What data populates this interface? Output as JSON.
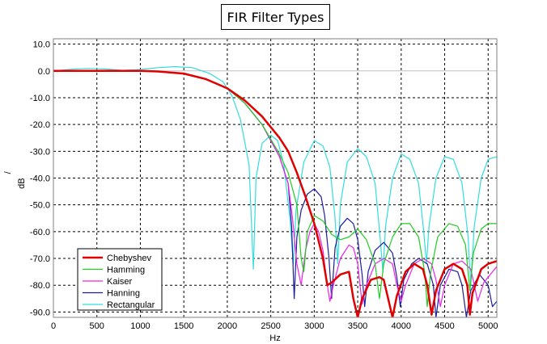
{
  "chart_data": {
    "type": "line",
    "title": "FIR Filter Types",
    "xlabel": "Hz",
    "ylabel": "dB",
    "ylabel_top": "/",
    "xlim": [
      0,
      5100
    ],
    "ylim": [
      -92,
      12
    ],
    "x_ticks": [
      0,
      500,
      1000,
      1500,
      2000,
      2500,
      3000,
      3500,
      4000,
      4500,
      5000
    ],
    "y_ticks": [
      10,
      0,
      -10,
      -20,
      -30,
      -40,
      -50,
      -60,
      -70,
      -80,
      -90
    ],
    "x_tick_labels": [
      "0",
      "500",
      "1000",
      "1500",
      "2000",
      "2500",
      "3000",
      "3500",
      "4000",
      "4500",
      "5000"
    ],
    "y_tick_labels": [
      "10.0",
      "0.0",
      "-10.0",
      "-20.0",
      "-30.0",
      "-40.0",
      "-50.0",
      "-60.0",
      "-70.0",
      "-80.0",
      "-90.0"
    ],
    "grid": true,
    "legend_position": "bottom-left",
    "series": [
      {
        "name": "Chebyshev",
        "color": "#e00000",
        "points": [
          [
            0,
            0
          ],
          [
            500,
            0
          ],
          [
            1000,
            0
          ],
          [
            1200,
            -0.2
          ],
          [
            1500,
            -1
          ],
          [
            1750,
            -3
          ],
          [
            2000,
            -6.5
          ],
          [
            2200,
            -11
          ],
          [
            2400,
            -17
          ],
          [
            2600,
            -25
          ],
          [
            2700,
            -30
          ],
          [
            2800,
            -38
          ],
          [
            2900,
            -47
          ],
          [
            3000,
            -57
          ],
          [
            3100,
            -70
          ],
          [
            3150,
            -80
          ],
          [
            3200,
            -79
          ],
          [
            3300,
            -76
          ],
          [
            3400,
            -75
          ],
          [
            3450,
            -85
          ],
          [
            3500,
            -92
          ],
          [
            3550,
            -85
          ],
          [
            3650,
            -78
          ],
          [
            3750,
            -77
          ],
          [
            3800,
            -78
          ],
          [
            3850,
            -85
          ],
          [
            3900,
            -92
          ],
          [
            3950,
            -84
          ],
          [
            4050,
            -75
          ],
          [
            4150,
            -72
          ],
          [
            4250,
            -74
          ],
          [
            4300,
            -80
          ],
          [
            4350,
            -91
          ],
          [
            4400,
            -82
          ],
          [
            4500,
            -74
          ],
          [
            4600,
            -72
          ],
          [
            4700,
            -74
          ],
          [
            4760,
            -80
          ],
          [
            4790,
            -91
          ],
          [
            4820,
            -83
          ],
          [
            4920,
            -74
          ],
          [
            5000,
            -72
          ],
          [
            5100,
            -71
          ]
        ]
      },
      {
        "name": "Hamming",
        "color": "#22cc22",
        "points": [
          [
            0,
            0
          ],
          [
            500,
            0
          ],
          [
            1000,
            0
          ],
          [
            1200,
            -0.2
          ],
          [
            1500,
            -1
          ],
          [
            1750,
            -3
          ],
          [
            2000,
            -6.5
          ],
          [
            2200,
            -12
          ],
          [
            2400,
            -20
          ],
          [
            2600,
            -31
          ],
          [
            2700,
            -38
          ],
          [
            2800,
            -50
          ],
          [
            2850,
            -70
          ],
          [
            2880,
            -75
          ],
          [
            2920,
            -60
          ],
          [
            3000,
            -54
          ],
          [
            3100,
            -56
          ],
          [
            3200,
            -61
          ],
          [
            3300,
            -63
          ],
          [
            3400,
            -62
          ],
          [
            3500,
            -59
          ],
          [
            3600,
            -63
          ],
          [
            3700,
            -72
          ],
          [
            3750,
            -85
          ],
          [
            3800,
            -72
          ],
          [
            3900,
            -62
          ],
          [
            4000,
            -57
          ],
          [
            4100,
            -57
          ],
          [
            4200,
            -62
          ],
          [
            4270,
            -75
          ],
          [
            4300,
            -88
          ],
          [
            4340,
            -75
          ],
          [
            4420,
            -62
          ],
          [
            4550,
            -57
          ],
          [
            4650,
            -58
          ],
          [
            4740,
            -65
          ],
          [
            4790,
            -82
          ],
          [
            4830,
            -68
          ],
          [
            4920,
            -59
          ],
          [
            5000,
            -57
          ],
          [
            5100,
            -57
          ]
        ]
      },
      {
        "name": "Kaiser",
        "color": "#ee22ee",
        "points": [
          [
            0,
            0
          ],
          [
            500,
            0
          ],
          [
            1000,
            0
          ],
          [
            1200,
            -0.2
          ],
          [
            1500,
            -1
          ],
          [
            1750,
            -3
          ],
          [
            2000,
            -6.5
          ],
          [
            2200,
            -12
          ],
          [
            2400,
            -20
          ],
          [
            2600,
            -32
          ],
          [
            2700,
            -42
          ],
          [
            2750,
            -55
          ],
          [
            2800,
            -72
          ],
          [
            2850,
            -80
          ],
          [
            2900,
            -67
          ],
          [
            2950,
            -60
          ],
          [
            3000,
            -57
          ],
          [
            3050,
            -60
          ],
          [
            3100,
            -67
          ],
          [
            3150,
            -80
          ],
          [
            3180,
            -86
          ],
          [
            3220,
            -80
          ],
          [
            3300,
            -70
          ],
          [
            3400,
            -65
          ],
          [
            3450,
            -66
          ],
          [
            3500,
            -72
          ],
          [
            3550,
            -87
          ],
          [
            3600,
            -80
          ],
          [
            3700,
            -72
          ],
          [
            3800,
            -70
          ],
          [
            3900,
            -72
          ],
          [
            3950,
            -80
          ],
          [
            4000,
            -86
          ],
          [
            4050,
            -80
          ],
          [
            4150,
            -72
          ],
          [
            4250,
            -70
          ],
          [
            4350,
            -72
          ],
          [
            4400,
            -78
          ],
          [
            4450,
            -88
          ],
          [
            4500,
            -80
          ],
          [
            4600,
            -72
          ],
          [
            4700,
            -71
          ],
          [
            4800,
            -74
          ],
          [
            4880,
            -86
          ],
          [
            4950,
            -79
          ],
          [
            5100,
            -73
          ]
        ]
      },
      {
        "name": "Hanning",
        "color": "#1c1c9e",
        "points": [
          [
            0,
            0
          ],
          [
            500,
            0
          ],
          [
            1000,
            0
          ],
          [
            1200,
            -0.2
          ],
          [
            1500,
            -1
          ],
          [
            1750,
            -3
          ],
          [
            2000,
            -6.5
          ],
          [
            2200,
            -12
          ],
          [
            2400,
            -20
          ],
          [
            2600,
            -32
          ],
          [
            2700,
            -42
          ],
          [
            2740,
            -58
          ],
          [
            2770,
            -85
          ],
          [
            2800,
            -62
          ],
          [
            2850,
            -52
          ],
          [
            2920,
            -46
          ],
          [
            3000,
            -44
          ],
          [
            3080,
            -47
          ],
          [
            3120,
            -54
          ],
          [
            3170,
            -70
          ],
          [
            3200,
            -85
          ],
          [
            3240,
            -66
          ],
          [
            3300,
            -58
          ],
          [
            3380,
            -55
          ],
          [
            3450,
            -57
          ],
          [
            3500,
            -63
          ],
          [
            3550,
            -76
          ],
          [
            3580,
            -88
          ],
          [
            3620,
            -75
          ],
          [
            3700,
            -67
          ],
          [
            3800,
            -64
          ],
          [
            3900,
            -68
          ],
          [
            3950,
            -77
          ],
          [
            3990,
            -88
          ],
          [
            4030,
            -78
          ],
          [
            4120,
            -72
          ],
          [
            4200,
            -70
          ],
          [
            4300,
            -72
          ],
          [
            4370,
            -80
          ],
          [
            4400,
            -92
          ],
          [
            4450,
            -80
          ],
          [
            4550,
            -74
          ],
          [
            4650,
            -75
          ],
          [
            4700,
            -80
          ],
          [
            4750,
            -92
          ],
          [
            4800,
            -82
          ],
          [
            4900,
            -76
          ],
          [
            5000,
            -80
          ],
          [
            5050,
            -88
          ],
          [
            5100,
            -86
          ]
        ]
      },
      {
        "name": "Rectangular",
        "color": "#33dddd",
        "points": [
          [
            0,
            0
          ],
          [
            200,
            0.6
          ],
          [
            400,
            0.9
          ],
          [
            600,
            0.7
          ],
          [
            800,
            0.2
          ],
          [
            1000,
            0.5
          ],
          [
            1200,
            1.2
          ],
          [
            1400,
            1.6
          ],
          [
            1600,
            1.2
          ],
          [
            1800,
            -1
          ],
          [
            1950,
            -4
          ],
          [
            2050,
            -9
          ],
          [
            2150,
            -18
          ],
          [
            2250,
            -35
          ],
          [
            2300,
            -74
          ],
          [
            2330,
            -40
          ],
          [
            2400,
            -27
          ],
          [
            2500,
            -24
          ],
          [
            2580,
            -26
          ],
          [
            2650,
            -35
          ],
          [
            2720,
            -55
          ],
          [
            2760,
            -72
          ],
          [
            2790,
            -52
          ],
          [
            2880,
            -34
          ],
          [
            3000,
            -26
          ],
          [
            3100,
            -28
          ],
          [
            3180,
            -36
          ],
          [
            3240,
            -55
          ],
          [
            3270,
            -72
          ],
          [
            3300,
            -50
          ],
          [
            3380,
            -34
          ],
          [
            3500,
            -29
          ],
          [
            3600,
            -32
          ],
          [
            3700,
            -42
          ],
          [
            3760,
            -63
          ],
          [
            3790,
            -75
          ],
          [
            3820,
            -58
          ],
          [
            3900,
            -40
          ],
          [
            4000,
            -31
          ],
          [
            4100,
            -33
          ],
          [
            4200,
            -42
          ],
          [
            4260,
            -60
          ],
          [
            4290,
            -72
          ],
          [
            4320,
            -58
          ],
          [
            4400,
            -40
          ],
          [
            4500,
            -32
          ],
          [
            4600,
            -33
          ],
          [
            4700,
            -42
          ],
          [
            4770,
            -62
          ],
          [
            4800,
            -80
          ],
          [
            4840,
            -58
          ],
          [
            4920,
            -40
          ],
          [
            5000,
            -33
          ],
          [
            5100,
            -32
          ]
        ]
      }
    ]
  }
}
